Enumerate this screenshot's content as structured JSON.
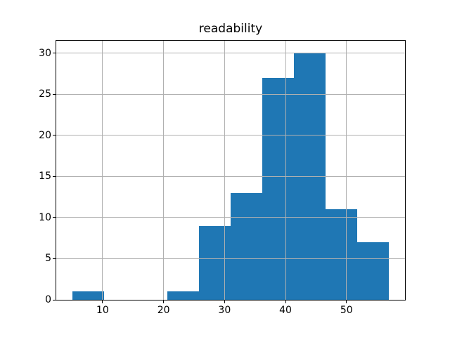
{
  "figure": {
    "background": "#ffffff"
  },
  "chart_data": {
    "type": "bar",
    "subtype": "histogram",
    "title": "readability",
    "xlabel": "",
    "ylabel": "",
    "bin_edges": [
      5.0,
      10.2,
      15.4,
      20.6,
      25.8,
      31.0,
      36.2,
      41.4,
      46.6,
      51.8,
      57.0
    ],
    "values": [
      1,
      0,
      0,
      1,
      9,
      13,
      27,
      30,
      11,
      7
    ],
    "xticks": [
      10,
      20,
      30,
      40,
      50
    ],
    "yticks": [
      0,
      5,
      10,
      15,
      20,
      25,
      30
    ],
    "xlim": [
      2.4,
      59.6
    ],
    "ylim": [
      0,
      31.5
    ],
    "grid": true,
    "legend": null,
    "bar_color": "#1f77b4",
    "grid_color": "#b0b0b0",
    "axis_color": "#000000",
    "text_color": "#000000"
  }
}
